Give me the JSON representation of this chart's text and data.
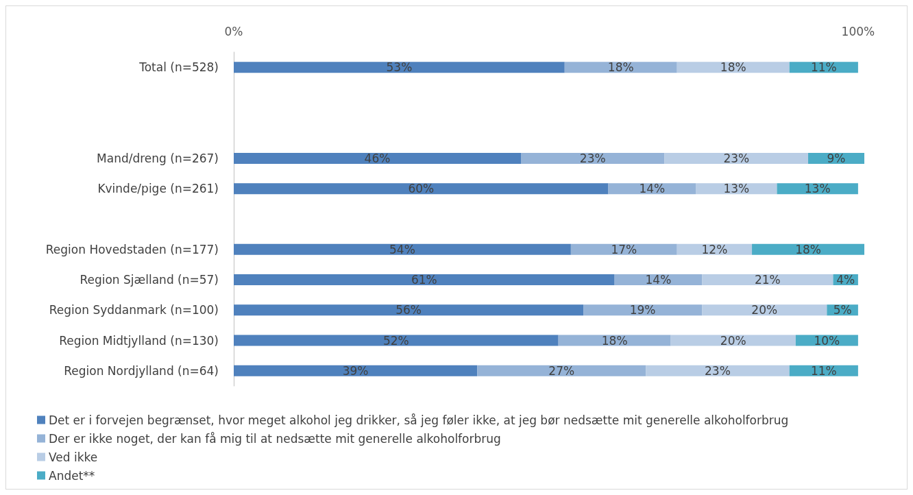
{
  "chart_data": {
    "type": "bar",
    "orientation": "horizontal",
    "stacked": true,
    "grid": false,
    "legend": "bottom left",
    "categories": [
      "Total (n=528)",
      null,
      null,
      "Mand/dreng (n=267)",
      "Kvinde/pige (n=261)",
      null,
      "Region Hovedstaden (n=177)",
      "Region Sjælland (n=57)",
      "Region Syddanmark (n=100)",
      "Region Midtjylland (n=130)",
      "Region Nordjylland (n=64)"
    ],
    "xlim": [
      0,
      101
    ],
    "xticks": [
      {
        "value": 0,
        "label": "0%"
      },
      {
        "value": 100,
        "label": "100%"
      }
    ],
    "series": [
      {
        "name": "Det er i forvejen begrænset, hvor meget alkohol jeg drikker, så jeg føler ikke, at jeg bør nedsætte mit generelle alkoholforbrug",
        "color": "#4f81bd",
        "values": [
          53,
          null,
          null,
          46,
          60,
          null,
          54,
          61,
          56,
          52,
          39
        ],
        "value_labels": [
          "53%",
          null,
          null,
          "46%",
          "60%",
          null,
          "54%",
          "61%",
          "56%",
          "52%",
          "39%"
        ]
      },
      {
        "name": "Der er ikke noget, der kan få mig til at nedsætte mit generelle alkoholforbrug",
        "color": "#95b3d7",
        "values": [
          18,
          null,
          null,
          23,
          14,
          null,
          17,
          14,
          19,
          18,
          27
        ],
        "value_labels": [
          "18%",
          null,
          null,
          "23%",
          "14%",
          null,
          "17%",
          "14%",
          "19%",
          "18%",
          "27%"
        ]
      },
      {
        "name": "Ved ikke",
        "color": "#b9cde5",
        "values": [
          18,
          null,
          null,
          23,
          13,
          null,
          12,
          21,
          20,
          20,
          23
        ],
        "value_labels": [
          "18%",
          null,
          null,
          "23%",
          "13%",
          null,
          "12%",
          "21%",
          "20%",
          "20%",
          "23%"
        ]
      },
      {
        "name": "Andet**",
        "color": "#4bacc6",
        "values": [
          11,
          null,
          null,
          9,
          13,
          null,
          18,
          4,
          5,
          10,
          11
        ],
        "value_labels": [
          "11%",
          null,
          null,
          "9%",
          "13%",
          null,
          "18%",
          "4%",
          "5%",
          "10%",
          "11%"
        ]
      }
    ]
  }
}
